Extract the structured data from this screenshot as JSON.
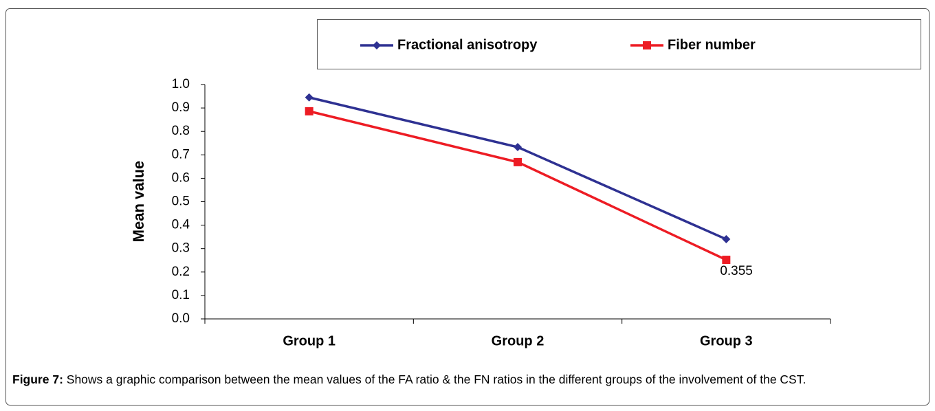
{
  "chart_data": {
    "type": "line",
    "categories": [
      "Group 1",
      "Group 2",
      "Group 3"
    ],
    "series": [
      {
        "name": "Fractional anisotropy",
        "color": "#2e3192",
        "marker": "diamond",
        "values": [
          0.945,
          0.733,
          0.34
        ]
      },
      {
        "name": "Fiber number",
        "color": "#ed1c24",
        "marker": "square",
        "values": [
          0.886,
          0.669,
          0.252
        ]
      }
    ],
    "annotation": "0.355",
    "ylabel": "Mean value",
    "ylim": [
      0,
      1
    ],
    "yticks": [
      {
        "value": 0,
        "label": "0.0"
      },
      0.1,
      0.2,
      0.3,
      0.4,
      0.5,
      0.6,
      0.7,
      0.8,
      0.9,
      {
        "value": 1,
        "label": "1.0"
      }
    ],
    "legend": "top",
    "caption_label": "Figure 7:",
    "caption": "Shows a graphic comparison between the mean values of the FA ratio & the FN ratios in the different groups of the involvement of the CST."
  }
}
